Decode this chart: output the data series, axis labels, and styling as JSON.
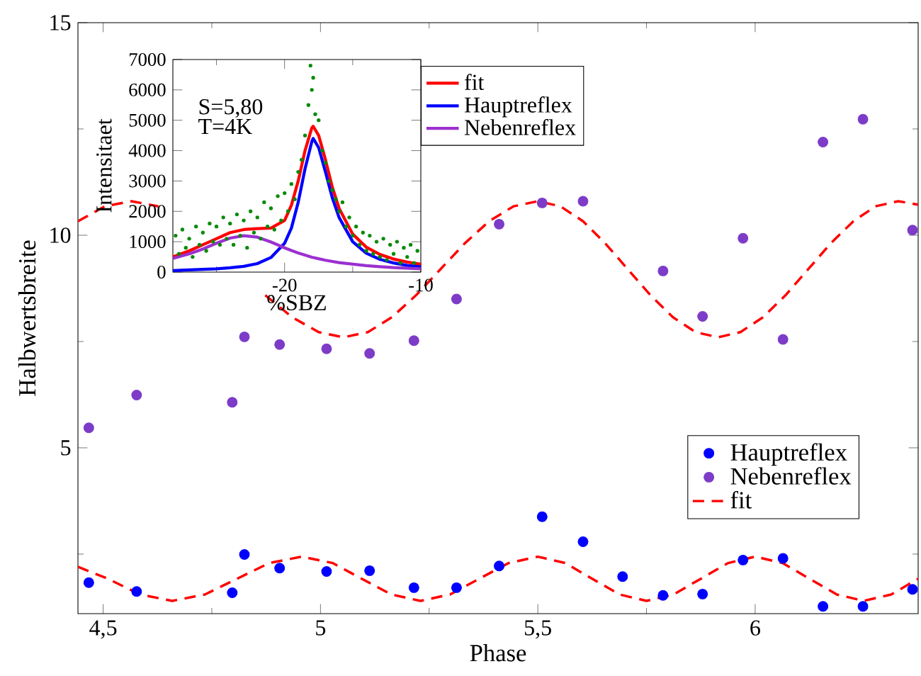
{
  "chart_data": [
    {
      "type": "scatter",
      "xlabel": "Phase",
      "ylabel": "Halbwertsbreite",
      "xlim": [
        4.442,
        6.375
      ],
      "ylim": [
        1.1,
        15
      ],
      "xticks": [
        {
          "value": 4.5,
          "label": "4,5"
        },
        {
          "value": 4.75,
          "label": null
        },
        5,
        {
          "value": 5.25,
          "label": null
        },
        {
          "value": 5.5,
          "label": "5,5"
        },
        {
          "value": 5.75,
          "label": null
        },
        6
      ],
      "yticks": [
        {
          "value": 2.5,
          "label": null
        },
        5,
        {
          "value": 7.5,
          "label": null
        },
        10,
        {
          "value": 12.5,
          "label": null
        },
        15
      ],
      "legend": "right",
      "line_style": "dashed",
      "series": [
        {
          "name": "Hauptreflex",
          "marker": "circle",
          "color": "#0000ff",
          "x": [
            4.467,
            4.577,
            4.797,
            4.825,
            4.906,
            5.014,
            5.113,
            5.215,
            5.313,
            5.411,
            5.51,
            5.604,
            5.695,
            5.788,
            5.879,
            5.972,
            6.064,
            6.156,
            6.248,
            6.362
          ],
          "values": [
            1.83,
            1.62,
            1.59,
            2.49,
            2.17,
            2.09,
            2.11,
            1.71,
            1.71,
            2.22,
            3.38,
            2.79,
            1.97,
            1.53,
            1.56,
            2.36,
            2.4,
            1.27,
            1.27,
            1.67
          ]
        },
        {
          "name": "Nebenreflex",
          "marker": "circle",
          "color": "#7d3cc8",
          "x": [
            4.467,
            4.577,
            4.797,
            4.825,
            4.906,
            5.014,
            5.113,
            5.215,
            5.313,
            5.411,
            5.51,
            5.604,
            5.788,
            5.879,
            5.972,
            6.064,
            6.156,
            6.248,
            6.362
          ],
          "values": [
            5.47,
            6.24,
            6.07,
            7.61,
            7.43,
            7.33,
            7.22,
            7.52,
            8.5,
            10.26,
            10.76,
            10.8,
            9.16,
            8.09,
            9.93,
            7.55,
            12.19,
            12.73,
            10.12
          ]
        },
        {
          "name": "fit",
          "type": "line",
          "marker": "none",
          "color": "#ff0000",
          "x": [
            4.442,
            4.511,
            4.585,
            4.659,
            4.734,
            4.808,
            4.882,
            4.957,
            5.028,
            5.095,
            5.163,
            5.23,
            5.298,
            5.365,
            5.433,
            5.5,
            5.563,
            5.625,
            5.688,
            5.75,
            5.812,
            5.875,
            5.938,
            6.0,
            6.063,
            6.125,
            6.188,
            6.25,
            6.313,
            6.375
          ],
          "values": [
            2.2,
            1.92,
            1.55,
            1.4,
            1.55,
            1.92,
            2.29,
            2.44,
            2.29,
            1.92,
            1.55,
            1.4,
            1.55,
            1.92,
            2.29,
            2.44,
            2.29,
            1.92,
            1.55,
            1.4,
            1.55,
            1.92,
            2.29,
            2.44,
            2.29,
            1.92,
            1.55,
            1.4,
            1.55,
            1.92
          ]
        },
        {
          "type": "line",
          "marker": "none",
          "color": "#ff0000",
          "x": [
            4.442,
            4.504,
            4.565,
            4.627,
            4.688,
            4.75,
            4.812,
            4.873,
            4.935,
            4.996,
            5.053,
            5.109,
            5.164,
            5.22,
            5.276,
            5.332,
            5.388,
            5.444,
            5.5,
            5.552,
            5.604,
            5.655,
            5.707,
            5.759,
            5.811,
            5.863,
            5.915,
            5.966,
            6.018,
            6.07,
            6.122,
            6.174,
            6.226,
            6.277,
            6.329,
            6.375
          ],
          "values": [
            10.33,
            10.68,
            10.8,
            10.68,
            null,
            null,
            null,
            8.59,
            8.07,
            7.72,
            7.6,
            7.72,
            8.07,
            8.59,
            9.2,
            9.81,
            10.33,
            10.68,
            10.8,
            10.68,
            10.33,
            9.81,
            9.2,
            8.59,
            8.07,
            7.72,
            7.6,
            7.72,
            8.07,
            8.59,
            9.2,
            9.81,
            10.33,
            10.68,
            10.8,
            10.72
          ]
        }
      ]
    },
    {
      "type": "line",
      "xlabel": "%SBZ",
      "ylabel": "Intensitaet",
      "xlim": [
        -28.2,
        -10
      ],
      "ylim": [
        0,
        7000
      ],
      "xticks": [
        {
          "value": -25,
          "label": null
        },
        -20,
        {
          "value": -15,
          "label": null
        },
        -10
      ],
      "yticks": [
        0,
        1000,
        2000,
        3000,
        4000,
        5000,
        6000,
        7000
      ],
      "legend": "top right",
      "line_style": "solid",
      "annotations": [
        "S=5,80",
        "T=4K"
      ],
      "series": [
        {
          "type": "scatter",
          "marker": "circle",
          "color": "#0a8a0a",
          "x": [
            -28.0,
            -27.75,
            -27.5,
            -27.25,
            -27.0,
            -26.75,
            -26.5,
            -26.25,
            -26.0,
            -25.75,
            -25.5,
            -25.25,
            -25.0,
            -24.75,
            -24.5,
            -24.25,
            -24.0,
            -23.75,
            -23.5,
            -23.25,
            -23.0,
            -22.75,
            -22.5,
            -22.25,
            -22.0,
            -21.75,
            -21.5,
            -21.25,
            -21.0,
            -20.75,
            -20.5,
            -20.25,
            -20.0,
            -19.75,
            -19.5,
            -19.25,
            -19.0,
            -18.75,
            -18.5,
            -18.25,
            -18.1,
            -18.0,
            -17.9,
            -17.75,
            -17.5,
            -17.25,
            -17.0,
            -16.75,
            -16.5,
            -16.25,
            -16.0,
            -15.75,
            -15.5,
            -15.25,
            -15.0,
            -14.75,
            -14.5,
            -14.25,
            -14.0,
            -13.75,
            -13.5,
            -13.25,
            -13.0,
            -12.75,
            -12.5,
            -12.25,
            -12.0,
            -11.75,
            -11.5,
            -11.25,
            -11.0,
            -10.75,
            -10.5,
            -10.25
          ],
          "values": [
            1200,
            600,
            1400,
            800,
            1100,
            500,
            1500,
            900,
            1300,
            700,
            1600,
            1000,
            1500,
            900,
            1800,
            1100,
            1600,
            900,
            1900,
            1200,
            1700,
            800,
            2000,
            1300,
            1800,
            1100,
            2300,
            1500,
            2100,
            1400,
            2500,
            1700,
            2600,
            2000,
            2900,
            2400,
            3300,
            3700,
            4500,
            5500,
            6800,
            6000,
            6400,
            5200,
            5000,
            4000,
            3600,
            3000,
            2700,
            2400,
            2000,
            2300,
            1500,
            1800,
            1200,
            1500,
            900,
            1300,
            700,
            1200,
            600,
            1000,
            500,
            1100,
            400,
            900,
            600,
            1000,
            300,
            800,
            500,
            900,
            300,
            700
          ]
        },
        {
          "name": "fit",
          "marker": "none",
          "color": "#ff0000",
          "x": [
            -28.2,
            -27,
            -26,
            -25,
            -24,
            -23,
            -22,
            -21,
            -20,
            -19.5,
            -19,
            -18.5,
            -18,
            -17.9,
            -17.5,
            -17,
            -16.5,
            -16,
            -15,
            -14,
            -13,
            -12,
            -11,
            -10
          ],
          "values": [
            500,
            700,
            900,
            1100,
            1300,
            1400,
            1430,
            1450,
            1700,
            2200,
            3000,
            4000,
            4750,
            4800,
            4500,
            3700,
            2800,
            2100,
            1250,
            820,
            580,
            430,
            330,
            260
          ]
        },
        {
          "name": "Hauptreflex",
          "marker": "none",
          "color": "#0000ff",
          "x": [
            -28.2,
            -27,
            -26,
            -25,
            -24,
            -23,
            -22,
            -21,
            -20,
            -19.5,
            -19,
            -18.5,
            -18,
            -17.9,
            -17.5,
            -17,
            -16.5,
            -16,
            -15,
            -14,
            -13,
            -12,
            -11,
            -10
          ],
          "values": [
            50,
            70,
            90,
            110,
            140,
            190,
            280,
            480,
            950,
            1450,
            2300,
            3400,
            4300,
            4400,
            4100,
            3300,
            2450,
            1800,
            1000,
            620,
            420,
            300,
            220,
            170
          ]
        },
        {
          "name": "Nebenreflex",
          "marker": "none",
          "color": "#9b30d0",
          "x": [
            -28.2,
            -27,
            -26,
            -25,
            -24,
            -23,
            -22,
            -21,
            -20,
            -19.5,
            -19,
            -18.5,
            -18,
            -17.9,
            -17.5,
            -17,
            -16.5,
            -16,
            -15,
            -14,
            -13,
            -12,
            -11,
            -10
          ],
          "values": [
            450,
            600,
            760,
            950,
            1120,
            1200,
            1150,
            990,
            800,
            710,
            630,
            560,
            490,
            480,
            440,
            390,
            350,
            310,
            260,
            210,
            180,
            150,
            130,
            110
          ]
        }
      ]
    }
  ]
}
